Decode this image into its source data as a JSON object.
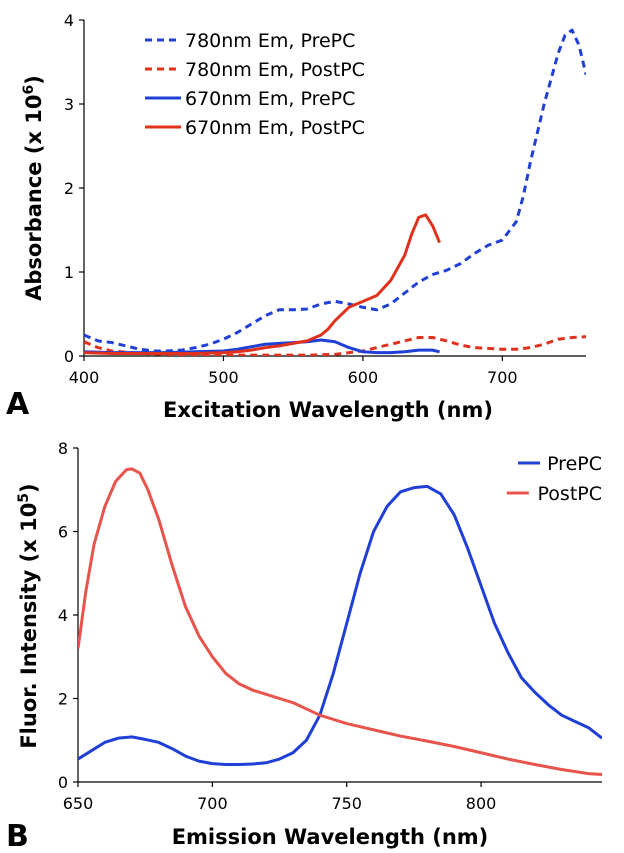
{
  "chart_data": [
    {
      "panel_label": "A",
      "type": "line",
      "xlabel": "Excitation Wavelength (nm)",
      "ylabel_main": "Absorbance (x 10",
      "ylabel_sup": "6",
      "ylabel_end": ")",
      "xlim": [
        400,
        760
      ],
      "ylim": [
        0,
        4
      ],
      "xticks": [
        400,
        500,
        600,
        700
      ],
      "yticks": [
        0,
        1,
        2,
        3,
        4
      ],
      "grid": false,
      "legend_position": "top-left",
      "series": [
        {
          "name": "780nm Em, PrePC",
          "color": "#1f3fd6",
          "dash": "dashed",
          "x": [
            400,
            410,
            420,
            430,
            440,
            450,
            460,
            470,
            480,
            490,
            500,
            510,
            520,
            530,
            540,
            550,
            560,
            570,
            580,
            590,
            600,
            610,
            620,
            630,
            640,
            650,
            660,
            670,
            680,
            690,
            700,
            710,
            715,
            720,
            730,
            740,
            745,
            750,
            755,
            760
          ],
          "y": [
            0.25,
            0.18,
            0.16,
            0.12,
            0.08,
            0.06,
            0.06,
            0.07,
            0.1,
            0.14,
            0.2,
            0.28,
            0.38,
            0.48,
            0.55,
            0.55,
            0.56,
            0.62,
            0.65,
            0.62,
            0.58,
            0.55,
            0.62,
            0.75,
            0.88,
            0.97,
            1.02,
            1.1,
            1.22,
            1.32,
            1.38,
            1.6,
            1.9,
            2.3,
            3.0,
            3.6,
            3.82,
            3.88,
            3.7,
            3.35
          ]
        },
        {
          "name": "780nm Em, PostPC",
          "color": "#e0311d",
          "dash": "dashed",
          "x": [
            400,
            410,
            420,
            440,
            460,
            480,
            500,
            520,
            540,
            560,
            580,
            600,
            610,
            620,
            630,
            640,
            650,
            660,
            670,
            680,
            690,
            700,
            710,
            720,
            730,
            740,
            750,
            760
          ],
          "y": [
            0.17,
            0.1,
            0.06,
            0.03,
            0.02,
            0.01,
            0.01,
            0.01,
            0.01,
            0.01,
            0.02,
            0.06,
            0.1,
            0.14,
            0.18,
            0.22,
            0.22,
            0.18,
            0.13,
            0.1,
            0.09,
            0.08,
            0.08,
            0.1,
            0.14,
            0.2,
            0.22,
            0.23
          ]
        },
        {
          "name": "670nm Em, PrePC",
          "color": "#1f3fd6",
          "dash": "solid",
          "x": [
            400,
            420,
            440,
            460,
            480,
            500,
            510,
            520,
            530,
            540,
            550,
            560,
            570,
            580,
            590,
            600,
            610,
            620,
            630,
            640,
            650,
            655
          ],
          "y": [
            0.05,
            0.04,
            0.04,
            0.04,
            0.05,
            0.06,
            0.08,
            0.11,
            0.14,
            0.15,
            0.16,
            0.17,
            0.19,
            0.17,
            0.1,
            0.05,
            0.04,
            0.04,
            0.05,
            0.07,
            0.07,
            0.05
          ]
        },
        {
          "name": "670nm Em, PostPC",
          "color": "#e0311d",
          "dash": "solid",
          "x": [
            400,
            420,
            440,
            460,
            480,
            500,
            510,
            520,
            530,
            540,
            550,
            560,
            570,
            575,
            580,
            590,
            600,
            610,
            620,
            630,
            635,
            640,
            645,
            650,
            655
          ],
          "y": [
            0.04,
            0.03,
            0.03,
            0.03,
            0.03,
            0.04,
            0.05,
            0.07,
            0.1,
            0.12,
            0.15,
            0.18,
            0.25,
            0.32,
            0.42,
            0.58,
            0.65,
            0.72,
            0.9,
            1.2,
            1.45,
            1.65,
            1.68,
            1.55,
            1.35
          ]
        }
      ]
    },
    {
      "panel_label": "B",
      "type": "line",
      "xlabel": "Emission Wavelength (nm)",
      "ylabel_main": "Fluor. Intensity (x 10",
      "ylabel_sup": "5",
      "ylabel_end": ")",
      "xlim": [
        650,
        845
      ],
      "ylim": [
        0,
        8
      ],
      "xticks": [
        650,
        700,
        750,
        800
      ],
      "yticks": [
        0,
        2,
        4,
        6,
        8
      ],
      "grid": false,
      "legend_position": "top-right",
      "series": [
        {
          "name": "PrePC",
          "color": "#1f3fd6",
          "dash": "solid",
          "x": [
            650,
            655,
            660,
            665,
            670,
            675,
            680,
            685,
            690,
            695,
            700,
            705,
            710,
            715,
            720,
            725,
            730,
            735,
            740,
            745,
            750,
            755,
            760,
            765,
            770,
            775,
            780,
            785,
            790,
            795,
            800,
            805,
            810,
            815,
            820,
            825,
            830,
            835,
            840,
            845
          ],
          "y": [
            0.55,
            0.75,
            0.95,
            1.05,
            1.08,
            1.02,
            0.95,
            0.8,
            0.62,
            0.5,
            0.44,
            0.42,
            0.42,
            0.43,
            0.46,
            0.55,
            0.7,
            1.0,
            1.6,
            2.6,
            3.8,
            5.0,
            6.0,
            6.6,
            6.95,
            7.05,
            7.08,
            6.9,
            6.4,
            5.6,
            4.7,
            3.8,
            3.1,
            2.5,
            2.15,
            1.85,
            1.6,
            1.45,
            1.3,
            1.05
          ]
        },
        {
          "name": "PostPC",
          "color": "#e8534b",
          "dash": "solid",
          "x": [
            650,
            653,
            656,
            660,
            664,
            668,
            670,
            673,
            676,
            680,
            685,
            690,
            695,
            700,
            705,
            710,
            715,
            720,
            725,
            730,
            735,
            740,
            745,
            750,
            760,
            770,
            780,
            790,
            800,
            810,
            820,
            830,
            835,
            840,
            845
          ],
          "y": [
            3.2,
            4.6,
            5.7,
            6.6,
            7.2,
            7.48,
            7.5,
            7.4,
            7.0,
            6.3,
            5.2,
            4.2,
            3.5,
            3.0,
            2.6,
            2.35,
            2.2,
            2.1,
            2.0,
            1.9,
            1.75,
            1.6,
            1.5,
            1.4,
            1.25,
            1.1,
            0.98,
            0.85,
            0.7,
            0.55,
            0.42,
            0.3,
            0.25,
            0.2,
            0.18
          ]
        }
      ]
    }
  ]
}
